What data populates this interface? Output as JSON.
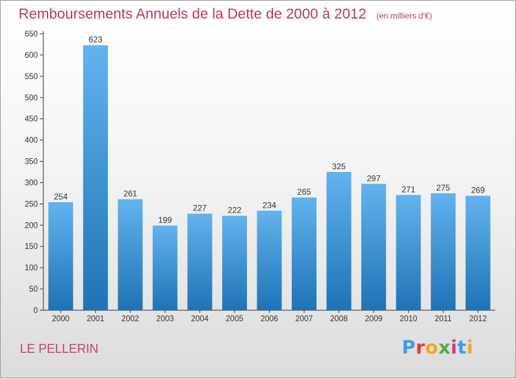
{
  "title": "Remboursements Annuels de la Dette de 2000 à 2012",
  "unit": "(en milliers d'€)",
  "commune": "LE PELLERIN",
  "logo": {
    "letters": [
      "P",
      "r",
      "o",
      "x",
      "i",
      "t",
      "i"
    ],
    "colors": [
      "#3d9be9",
      "#e23a2e",
      "#f0a722",
      "#4cae3c",
      "#d8368a",
      "#3d9be9",
      "#f0a722"
    ]
  },
  "colors": {
    "bar_top": "#62b3ee",
    "bar_bottom": "#1f73b5",
    "title": "#b2386a"
  },
  "chart_data": {
    "type": "bar",
    "categories": [
      "2000",
      "2001",
      "2002",
      "2003",
      "2004",
      "2005",
      "2006",
      "2007",
      "2008",
      "2009",
      "2010",
      "2011",
      "2012"
    ],
    "values": [
      254,
      623,
      261,
      199,
      227,
      222,
      234,
      265,
      325,
      297,
      271,
      275,
      269
    ],
    "yticks": [
      0,
      50,
      100,
      150,
      200,
      250,
      300,
      350,
      400,
      450,
      500,
      550,
      600,
      650
    ],
    "ylim": [
      0,
      650
    ],
    "grid": false,
    "data_labels": true
  }
}
